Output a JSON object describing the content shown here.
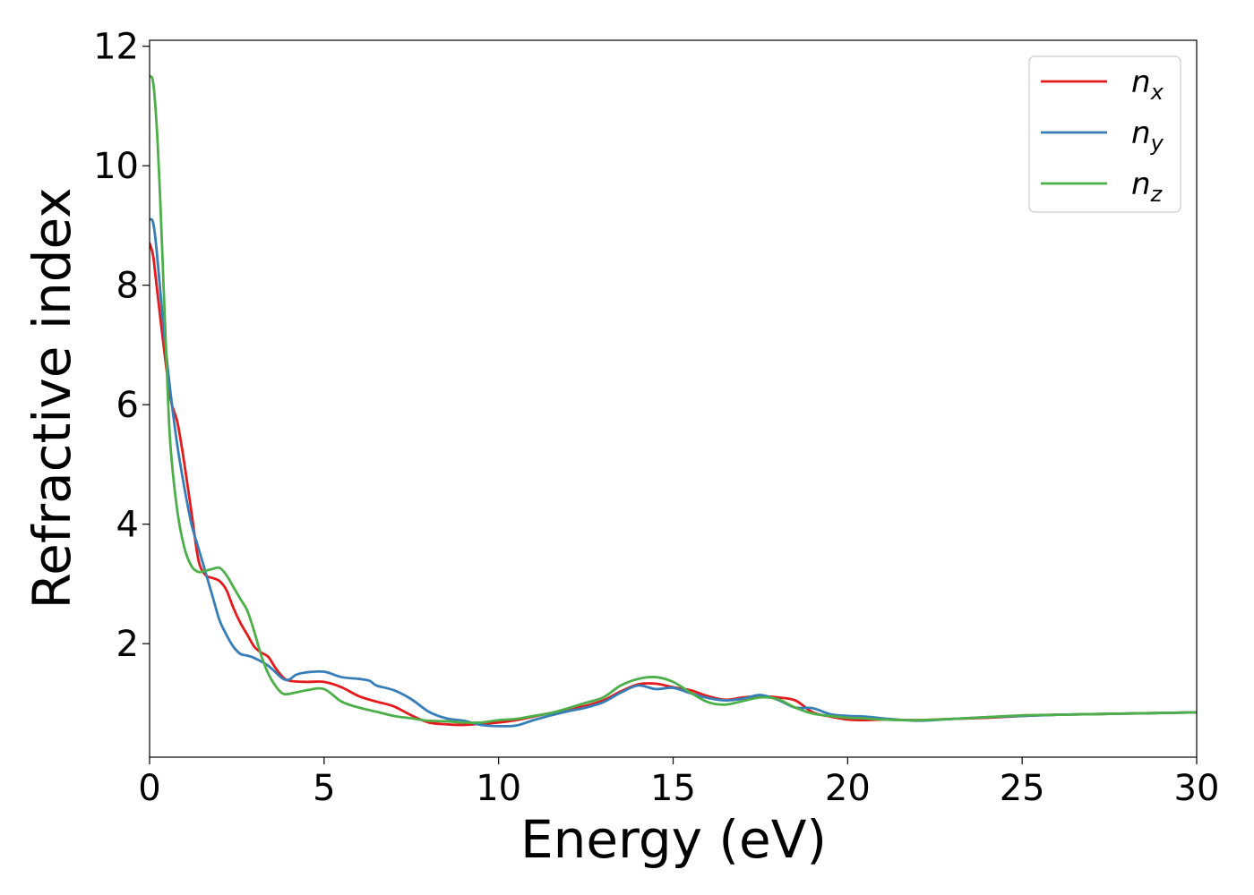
{
  "chart_data": {
    "type": "line",
    "xlabel": "Energy (eV)",
    "ylabel": "Refractive index",
    "xlim": [
      0,
      30
    ],
    "ylim": [
      0.1,
      12.1
    ],
    "xticks": [
      0,
      5,
      10,
      15,
      20,
      25,
      30
    ],
    "yticks": [
      2,
      4,
      6,
      8,
      10,
      12
    ],
    "grid": false,
    "legend_position": "top-right",
    "series": [
      {
        "name": "n",
        "subscript": "x",
        "color": "#e41a1c",
        "points": [
          [
            0,
            8.7
          ],
          [
            0.1,
            8.5
          ],
          [
            0.2,
            8.0
          ],
          [
            0.4,
            7.0
          ],
          [
            0.6,
            6.1
          ],
          [
            0.8,
            5.7
          ],
          [
            1.0,
            5.0
          ],
          [
            1.2,
            4.2
          ],
          [
            1.4,
            3.4
          ],
          [
            1.6,
            3.15
          ],
          [
            1.8,
            3.1
          ],
          [
            2.0,
            3.05
          ],
          [
            2.2,
            2.9
          ],
          [
            2.4,
            2.6
          ],
          [
            2.6,
            2.35
          ],
          [
            2.8,
            2.15
          ],
          [
            3.0,
            1.95
          ],
          [
            3.2,
            1.85
          ],
          [
            3.4,
            1.78
          ],
          [
            3.6,
            1.6
          ],
          [
            3.8,
            1.45
          ],
          [
            4.0,
            1.38
          ],
          [
            4.5,
            1.36
          ],
          [
            5.0,
            1.36
          ],
          [
            5.5,
            1.27
          ],
          [
            6.0,
            1.12
          ],
          [
            6.5,
            1.03
          ],
          [
            7.0,
            0.95
          ],
          [
            7.5,
            0.8
          ],
          [
            8.0,
            0.68
          ],
          [
            8.5,
            0.65
          ],
          [
            9.0,
            0.64
          ],
          [
            9.5,
            0.66
          ],
          [
            10.0,
            0.68
          ],
          [
            10.5,
            0.72
          ],
          [
            11.0,
            0.78
          ],
          [
            11.5,
            0.84
          ],
          [
            12.0,
            0.9
          ],
          [
            12.5,
            0.96
          ],
          [
            13.0,
            1.05
          ],
          [
            13.5,
            1.2
          ],
          [
            14.0,
            1.32
          ],
          [
            14.5,
            1.33
          ],
          [
            15.0,
            1.27
          ],
          [
            15.5,
            1.22
          ],
          [
            16.0,
            1.12
          ],
          [
            16.5,
            1.06
          ],
          [
            17.0,
            1.1
          ],
          [
            17.5,
            1.12
          ],
          [
            18.0,
            1.1
          ],
          [
            18.5,
            1.05
          ],
          [
            19.0,
            0.85
          ],
          [
            19.5,
            0.78
          ],
          [
            20.0,
            0.73
          ],
          [
            20.5,
            0.72
          ],
          [
            21.0,
            0.73
          ],
          [
            22.0,
            0.72
          ],
          [
            23.0,
            0.74
          ],
          [
            24.0,
            0.76
          ],
          [
            25.0,
            0.79
          ],
          [
            26.0,
            0.81
          ],
          [
            27.0,
            0.82
          ],
          [
            28.0,
            0.83
          ],
          [
            29.0,
            0.84
          ],
          [
            30.0,
            0.85
          ]
        ]
      },
      {
        "name": "n",
        "subscript": "y",
        "color": "#377eb8",
        "points": [
          [
            0,
            9.1
          ],
          [
            0.1,
            9.05
          ],
          [
            0.2,
            8.6
          ],
          [
            0.4,
            7.3
          ],
          [
            0.6,
            6.2
          ],
          [
            0.8,
            5.3
          ],
          [
            1.0,
            4.6
          ],
          [
            1.2,
            4.0
          ],
          [
            1.4,
            3.6
          ],
          [
            1.6,
            3.2
          ],
          [
            1.8,
            2.8
          ],
          [
            2.0,
            2.4
          ],
          [
            2.2,
            2.15
          ],
          [
            2.4,
            1.95
          ],
          [
            2.6,
            1.83
          ],
          [
            2.8,
            1.8
          ],
          [
            3.0,
            1.76
          ],
          [
            3.4,
            1.63
          ],
          [
            3.8,
            1.42
          ],
          [
            4.0,
            1.4
          ],
          [
            4.2,
            1.48
          ],
          [
            4.5,
            1.52
          ],
          [
            5.0,
            1.53
          ],
          [
            5.5,
            1.44
          ],
          [
            6.0,
            1.41
          ],
          [
            6.3,
            1.38
          ],
          [
            6.5,
            1.3
          ],
          [
            7.0,
            1.22
          ],
          [
            7.5,
            1.07
          ],
          [
            8.0,
            0.86
          ],
          [
            8.5,
            0.75
          ],
          [
            9.0,
            0.71
          ],
          [
            9.5,
            0.64
          ],
          [
            10.0,
            0.62
          ],
          [
            10.5,
            0.63
          ],
          [
            11.0,
            0.72
          ],
          [
            11.5,
            0.8
          ],
          [
            12.0,
            0.87
          ],
          [
            12.5,
            0.93
          ],
          [
            13.0,
            1.02
          ],
          [
            13.5,
            1.18
          ],
          [
            14.0,
            1.3
          ],
          [
            14.5,
            1.24
          ],
          [
            15.0,
            1.26
          ],
          [
            15.5,
            1.17
          ],
          [
            16.0,
            1.09
          ],
          [
            16.5,
            1.05
          ],
          [
            17.0,
            1.08
          ],
          [
            17.5,
            1.14
          ],
          [
            18.0,
            1.06
          ],
          [
            18.5,
            0.93
          ],
          [
            19.0,
            0.92
          ],
          [
            19.5,
            0.82
          ],
          [
            20.0,
            0.79
          ],
          [
            20.5,
            0.78
          ],
          [
            21.0,
            0.75
          ],
          [
            22.0,
            0.71
          ],
          [
            23.0,
            0.74
          ],
          [
            24.0,
            0.77
          ],
          [
            25.0,
            0.79
          ],
          [
            26.0,
            0.81
          ],
          [
            27.0,
            0.82
          ],
          [
            28.0,
            0.83
          ],
          [
            29.0,
            0.84
          ],
          [
            30.0,
            0.85
          ]
        ]
      },
      {
        "name": "n",
        "subscript": "z",
        "color": "#4daf4a",
        "points": [
          [
            0,
            11.5
          ],
          [
            0.1,
            11.4
          ],
          [
            0.2,
            10.7
          ],
          [
            0.3,
            9.5
          ],
          [
            0.4,
            8.0
          ],
          [
            0.5,
            6.5
          ],
          [
            0.6,
            5.3
          ],
          [
            0.8,
            4.2
          ],
          [
            1.0,
            3.6
          ],
          [
            1.2,
            3.3
          ],
          [
            1.4,
            3.2
          ],
          [
            1.6,
            3.22
          ],
          [
            1.8,
            3.25
          ],
          [
            2.0,
            3.27
          ],
          [
            2.2,
            3.15
          ],
          [
            2.4,
            2.95
          ],
          [
            2.6,
            2.75
          ],
          [
            2.8,
            2.55
          ],
          [
            3.0,
            2.2
          ],
          [
            3.2,
            1.8
          ],
          [
            3.4,
            1.5
          ],
          [
            3.6,
            1.3
          ],
          [
            3.8,
            1.17
          ],
          [
            4.0,
            1.16
          ],
          [
            4.5,
            1.22
          ],
          [
            5.0,
            1.24
          ],
          [
            5.5,
            1.03
          ],
          [
            6.0,
            0.93
          ],
          [
            6.5,
            0.86
          ],
          [
            7.0,
            0.79
          ],
          [
            7.5,
            0.75
          ],
          [
            8.0,
            0.71
          ],
          [
            8.5,
            0.7
          ],
          [
            9.0,
            0.68
          ],
          [
            9.5,
            0.68
          ],
          [
            10.0,
            0.72
          ],
          [
            10.5,
            0.74
          ],
          [
            11.0,
            0.79
          ],
          [
            11.5,
            0.84
          ],
          [
            12.0,
            0.92
          ],
          [
            12.5,
            1.01
          ],
          [
            13.0,
            1.1
          ],
          [
            13.5,
            1.3
          ],
          [
            14.0,
            1.41
          ],
          [
            14.5,
            1.44
          ],
          [
            15.0,
            1.36
          ],
          [
            15.5,
            1.18
          ],
          [
            16.0,
            1.02
          ],
          [
            16.5,
            0.98
          ],
          [
            17.0,
            1.04
          ],
          [
            17.5,
            1.1
          ],
          [
            18.0,
            1.07
          ],
          [
            18.5,
            0.93
          ],
          [
            19.0,
            0.83
          ],
          [
            19.5,
            0.79
          ],
          [
            20.0,
            0.76
          ],
          [
            20.5,
            0.75
          ],
          [
            21.0,
            0.73
          ],
          [
            22.0,
            0.72
          ],
          [
            23.0,
            0.74
          ],
          [
            24.0,
            0.77
          ],
          [
            25.0,
            0.8
          ],
          [
            26.0,
            0.81
          ],
          [
            27.0,
            0.82
          ],
          [
            28.0,
            0.83
          ],
          [
            29.0,
            0.84
          ],
          [
            30.0,
            0.85
          ]
        ]
      }
    ]
  }
}
